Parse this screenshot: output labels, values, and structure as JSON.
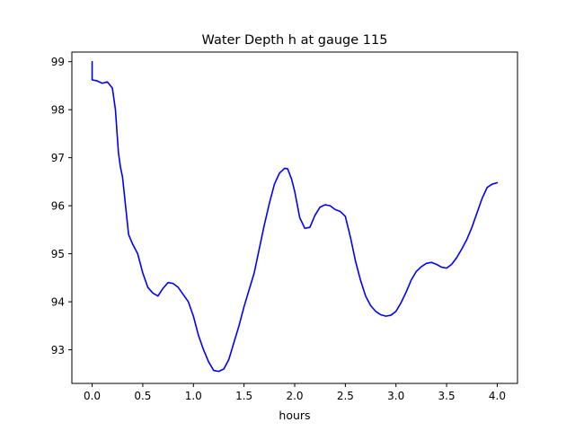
{
  "chart_data": {
    "type": "line",
    "title": "Water Depth h at gauge 115",
    "xlabel": "hours",
    "ylabel": "",
    "xlim": [
      -0.2,
      4.2
    ],
    "ylim": [
      92.3,
      99.2
    ],
    "xticks": [
      0.0,
      0.5,
      1.0,
      1.5,
      2.0,
      2.5,
      3.0,
      3.5,
      4.0
    ],
    "xtick_labels": [
      "0.0",
      "0.5",
      "1.0",
      "1.5",
      "2.0",
      "2.5",
      "3.0",
      "3.5",
      "4.0"
    ],
    "yticks": [
      93,
      94,
      95,
      96,
      97,
      98,
      99
    ],
    "ytick_labels": [
      "93",
      "94",
      "95",
      "96",
      "97",
      "98",
      "99"
    ],
    "grid": false,
    "series": [
      {
        "color": "#0000ff",
        "x": [
          0.0,
          0.0,
          0.05,
          0.1,
          0.15,
          0.2,
          0.23,
          0.26,
          0.28,
          0.3,
          0.33,
          0.36,
          0.4,
          0.45,
          0.5,
          0.55,
          0.6,
          0.65,
          0.7,
          0.75,
          0.8,
          0.85,
          0.9,
          0.95,
          1.0,
          1.05,
          1.1,
          1.15,
          1.2,
          1.25,
          1.3,
          1.35,
          1.4,
          1.45,
          1.5,
          1.55,
          1.6,
          1.65,
          1.7,
          1.75,
          1.8,
          1.85,
          1.9,
          1.93,
          1.97,
          2.0,
          2.05,
          2.1,
          2.15,
          2.2,
          2.25,
          2.3,
          2.35,
          2.4,
          2.45,
          2.5,
          2.55,
          2.6,
          2.65,
          2.7,
          2.75,
          2.8,
          2.85,
          2.9,
          2.95,
          3.0,
          3.05,
          3.1,
          3.15,
          3.2,
          3.25,
          3.3,
          3.35,
          3.4,
          3.45,
          3.5,
          3.55,
          3.6,
          3.65,
          3.7,
          3.75,
          3.8,
          3.85,
          3.9,
          3.95,
          4.0
        ],
        "y": [
          99.0,
          98.62,
          98.6,
          98.55,
          98.58,
          98.45,
          98.0,
          97.1,
          96.8,
          96.6,
          96.0,
          95.4,
          95.2,
          95.0,
          94.6,
          94.3,
          94.18,
          94.12,
          94.28,
          94.4,
          94.38,
          94.3,
          94.15,
          94.0,
          93.7,
          93.3,
          93.0,
          92.75,
          92.57,
          92.55,
          92.6,
          92.8,
          93.15,
          93.5,
          93.9,
          94.25,
          94.6,
          95.1,
          95.6,
          96.05,
          96.45,
          96.68,
          96.78,
          96.77,
          96.55,
          96.3,
          95.75,
          95.53,
          95.55,
          95.8,
          95.97,
          96.02,
          96.0,
          95.92,
          95.88,
          95.78,
          95.35,
          94.85,
          94.45,
          94.12,
          93.92,
          93.8,
          93.73,
          93.7,
          93.72,
          93.8,
          93.98,
          94.2,
          94.45,
          94.63,
          94.73,
          94.8,
          94.82,
          94.78,
          94.72,
          94.7,
          94.78,
          94.92,
          95.1,
          95.3,
          95.55,
          95.85,
          96.15,
          96.38,
          96.45,
          96.48
        ]
      }
    ]
  }
}
